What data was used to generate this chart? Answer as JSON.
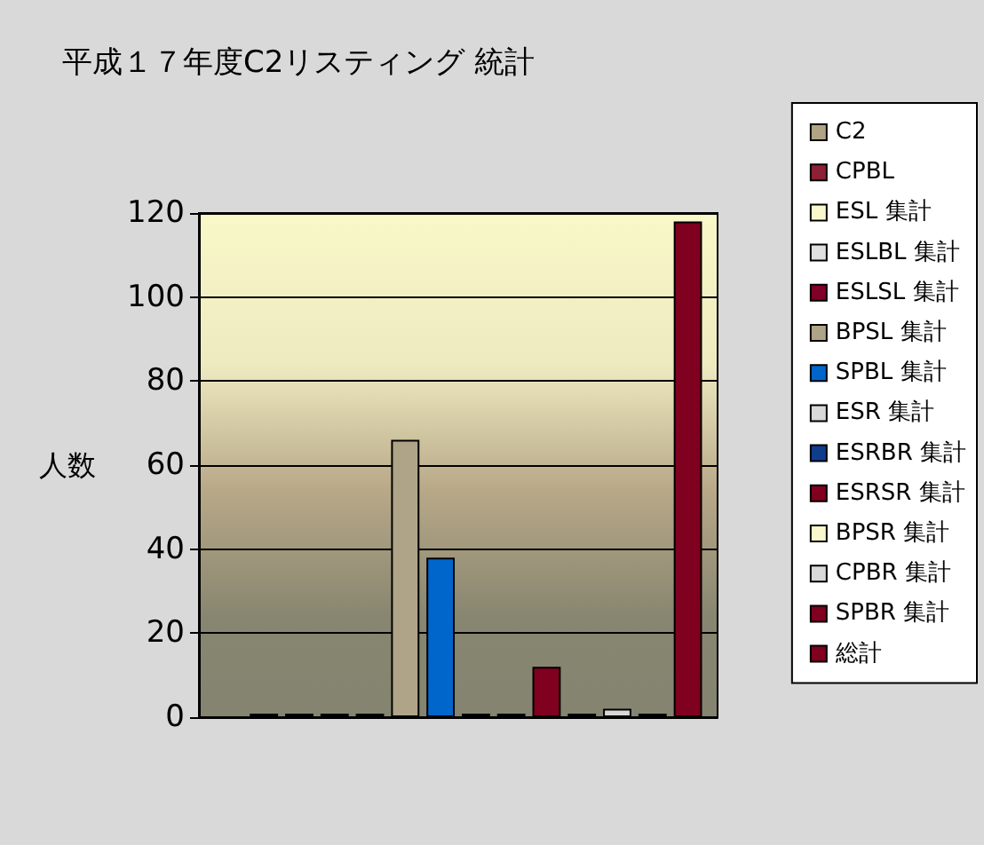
{
  "chart_data": {
    "type": "bar",
    "title": "平成１７年度C2リスティング 統計",
    "ylabel": "人数",
    "categories": [
      null
    ],
    "series": [
      {
        "name": "C2",
        "color": "#b0a484",
        "values": [
          null
        ]
      },
      {
        "name": "CPBL",
        "color": "#8c2034",
        "values": [
          0
        ]
      },
      {
        "name": "ESL 集計",
        "color": "#f8f8cc",
        "values": [
          0
        ]
      },
      {
        "name": "ESLBL 集計",
        "color": "#e0e0e0",
        "values": [
          0
        ]
      },
      {
        "name": "ESLSL 集計",
        "color": "#800028",
        "values": [
          0
        ]
      },
      {
        "name": "BPSL 集計",
        "color": "#b0a488",
        "values": [
          66
        ]
      },
      {
        "name": "SPBL 集計",
        "color": "#0066cc",
        "values": [
          38
        ]
      },
      {
        "name": "ESR 集計",
        "color": "#d8d8d8",
        "values": [
          0
        ]
      },
      {
        "name": "ESRBR 集計",
        "color": "#103c8c",
        "values": [
          0
        ]
      },
      {
        "name": "ESRSR 集計",
        "color": "#800020",
        "values": [
          12
        ]
      },
      {
        "name": "BPSR 集計",
        "color": "#f8f8cc",
        "values": [
          0
        ]
      },
      {
        "name": "CPBR 集計",
        "color": "#d8d8d8",
        "values": [
          2
        ]
      },
      {
        "name": "SPBR 集計",
        "color": "#800020",
        "values": [
          0
        ]
      },
      {
        "name": "総計",
        "color": "#800020",
        "values": [
          118
        ]
      }
    ],
    "ylim": [
      0,
      120
    ],
    "yticks": [
      0,
      20,
      40,
      60,
      80,
      100,
      120
    ],
    "grid": "y",
    "legend": "right"
  }
}
